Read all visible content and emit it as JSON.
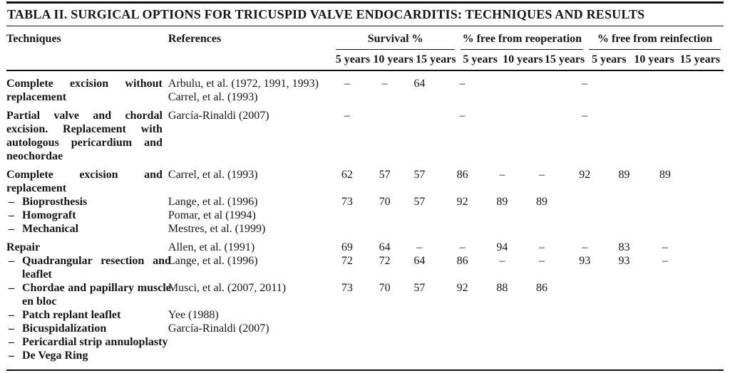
{
  "title": "TABLA II. SURGICAL OPTIONS FOR TRICUSPID VALVE ENDOCARDITIS: TECHNIQUES AND RESULTS",
  "table": {
    "columns": {
      "techniques": "Techniques",
      "references": "References",
      "groups": [
        {
          "label": "Survival %",
          "sub": [
            "5 years",
            "10 years",
            "15 years"
          ]
        },
        {
          "label": "% free from reoperation",
          "sub": [
            "5 years",
            "10 years",
            "15 years"
          ]
        },
        {
          "label": "% free from reinfection",
          "sub": [
            "5 years",
            "10 years",
            "15 years"
          ]
        }
      ]
    },
    "rows": [
      {
        "group_start": true,
        "bullet": "",
        "technique": "Complete excision without replacement",
        "references": [
          "Arbulu, et al. (1972, 1991, 1993)",
          "Carrel, et al. (1993)"
        ],
        "values": [
          "–",
          "–",
          "64",
          "–",
          "",
          "",
          "–",
          "",
          ""
        ]
      },
      {
        "group_start": true,
        "bullet": "",
        "technique": "Partial valve and chordal excision. Replacement with autologous pericardium and neochordae",
        "references": [
          "García-Rinaldi (2007)"
        ],
        "values": [
          "–",
          "",
          "",
          "–",
          "",
          "",
          "–",
          "",
          ""
        ]
      },
      {
        "group_start": true,
        "bullet": "",
        "technique": "Complete excision and replacement",
        "references": [
          "Carrel, et al. (1993)"
        ],
        "values": [
          "62",
          "57",
          "57",
          "86",
          "–",
          "–",
          "92",
          "89",
          "89"
        ]
      },
      {
        "group_start": false,
        "bullet": "–",
        "technique": "Bioprosthesis",
        "references": [
          "Lange, et al. (1996)"
        ],
        "values": [
          "73",
          "70",
          "57",
          "92",
          "89",
          "89",
          "",
          "",
          ""
        ]
      },
      {
        "group_start": false,
        "bullet": "–",
        "technique": "Homograft",
        "references": [
          "Pomar, et al (1994)"
        ],
        "values": [
          "",
          "",
          "",
          "",
          "",
          "",
          "",
          "",
          ""
        ]
      },
      {
        "group_start": false,
        "bullet": "–",
        "technique": "Mechanical",
        "references": [
          "Mestres, et al. (1999)"
        ],
        "values": [
          "",
          "",
          "",
          "",
          "",
          "",
          "",
          "",
          ""
        ]
      },
      {
        "group_start": true,
        "bullet": "",
        "technique": "Repair",
        "references": [
          "Allen, et al. (1991)"
        ],
        "values": [
          "69",
          "64",
          "–",
          "–",
          "94",
          "–",
          "–",
          "83",
          "–"
        ]
      },
      {
        "group_start": false,
        "bullet": "–",
        "technique": "Quadrangular resection and leaflet",
        "references": [
          "Lange, et al. (1996)"
        ],
        "values": [
          "72",
          "72",
          "64",
          "86",
          "–",
          "–",
          "93",
          "93",
          "–"
        ]
      },
      {
        "group_start": false,
        "bullet": "–",
        "technique": "Chordae and papillary muscle en bloc",
        "references": [
          "Musci, et al. (2007, 2011)"
        ],
        "values": [
          "73",
          "70",
          "57",
          "92",
          "88",
          "86",
          "",
          "",
          ""
        ]
      },
      {
        "group_start": false,
        "bullet": "–",
        "technique": "Patch replant leaflet",
        "references": [
          "Yee (1988)"
        ],
        "values": [
          "",
          "",
          "",
          "",
          "",
          "",
          "",
          "",
          ""
        ]
      },
      {
        "group_start": false,
        "bullet": "–",
        "technique": "Bicuspidalization",
        "references": [
          "García-Rinaldi (2007)"
        ],
        "values": [
          "",
          "",
          "",
          "",
          "",
          "",
          "",
          "",
          ""
        ]
      },
      {
        "group_start": false,
        "bullet": "–",
        "technique": "Pericardial strip annuloplasty",
        "references": [],
        "values": [
          "",
          "",
          "",
          "",
          "",
          "",
          "",
          "",
          ""
        ]
      },
      {
        "group_start": false,
        "bullet": "–",
        "technique": "De Vega Ring",
        "references": [],
        "values": [
          "",
          "",
          "",
          "",
          "",
          "",
          "",
          "",
          ""
        ]
      }
    ]
  }
}
